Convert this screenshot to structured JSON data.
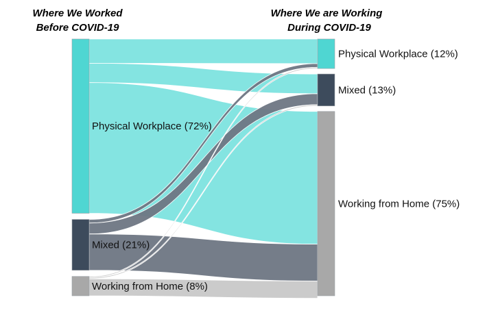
{
  "chart_data": {
    "type": "sankey",
    "left_title": [
      "Where We Worked",
      "Before COVID-19"
    ],
    "right_title": [
      "Where We are Working",
      "During COVID-19"
    ],
    "colors": {
      "physical": "#4fd6d2",
      "mixed": "#3d4b5c",
      "home": "#a8a8a8",
      "link_physical": "#7de3df",
      "link_mixed": "#6e7683",
      "link_home": "#c8c8c8"
    },
    "sources": [
      {
        "id": "physical",
        "label": "Physical Workplace (72%)",
        "value": 72
      },
      {
        "id": "mixed",
        "label": "Mixed (21%)",
        "value": 21
      },
      {
        "id": "home",
        "label": "Working from Home (8%)",
        "value": 8
      }
    ],
    "targets": [
      {
        "id": "physical",
        "label": "Physical Workplace (12%)",
        "value": 12
      },
      {
        "id": "mixed",
        "label": "Mixed (13%)",
        "value": 13
      },
      {
        "id": "home",
        "label": "Working from Home (75%)",
        "value": 75
      }
    ],
    "flows": [
      {
        "source": "physical",
        "target": "physical",
        "value": 10
      },
      {
        "source": "physical",
        "target": "mixed",
        "value": 8
      },
      {
        "source": "physical",
        "target": "home",
        "value": 54
      },
      {
        "source": "mixed",
        "target": "physical",
        "value": 1.5
      },
      {
        "source": "mixed",
        "target": "mixed",
        "value": 4.5
      },
      {
        "source": "mixed",
        "target": "home",
        "value": 15
      },
      {
        "source": "home",
        "target": "physical",
        "value": 0.5
      },
      {
        "source": "home",
        "target": "mixed",
        "value": 0.5
      },
      {
        "source": "home",
        "target": "home",
        "value": 7
      }
    ]
  }
}
